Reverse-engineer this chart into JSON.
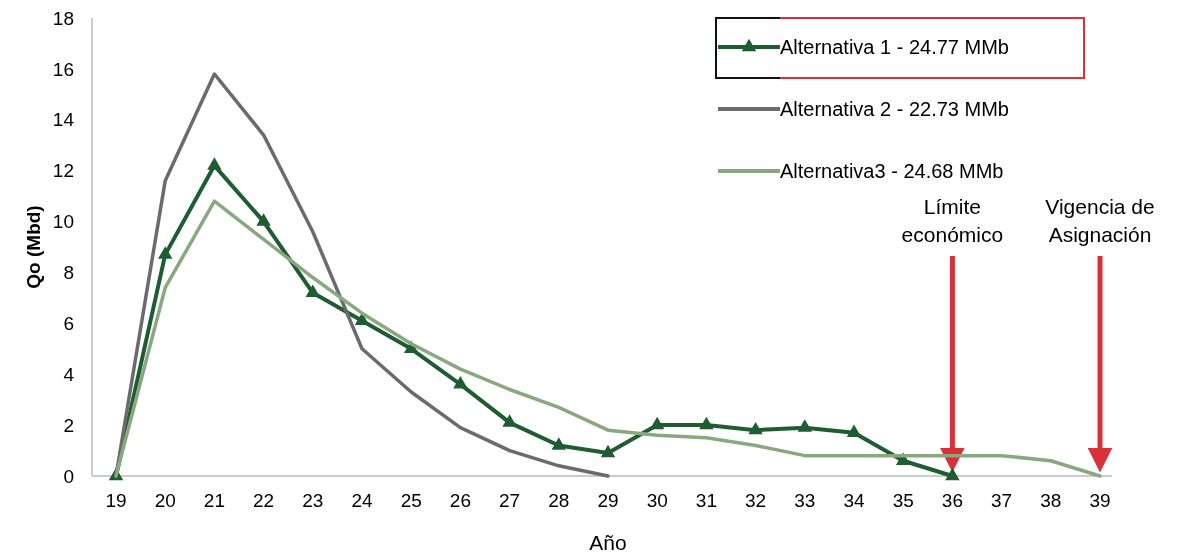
{
  "chart_data": {
    "type": "line",
    "xlabel": "Año",
    "ylabel": "Qo (Mbd)",
    "categories": [
      "19",
      "20",
      "21",
      "22",
      "23",
      "24",
      "25",
      "26",
      "27",
      "28",
      "29",
      "30",
      "31",
      "32",
      "33",
      "34",
      "35",
      "36",
      "37",
      "38",
      "39"
    ],
    "ylim": [
      0,
      18
    ],
    "yticks": [
      0,
      2,
      4,
      6,
      8,
      10,
      12,
      14,
      16,
      18
    ],
    "legend": "top right",
    "series": [
      {
        "name": "Alternativa 1 - 24.77 MMb",
        "color": "#1f5c32",
        "marker": "triangle",
        "values": [
          0,
          8.7,
          12.2,
          10,
          7.2,
          6.1,
          5.0,
          3.6,
          2.1,
          1.2,
          0.9,
          2.0,
          2.0,
          1.8,
          1.9,
          1.7,
          0.6,
          0,
          null,
          null,
          null
        ]
      },
      {
        "name": "Alternativa 2 - 22.73 MMb",
        "color": "#6b6b6e",
        "marker": "none",
        "values": [
          0,
          11.6,
          15.8,
          13.4,
          9.6,
          5.0,
          3.3,
          1.9,
          1.0,
          0.4,
          0,
          null,
          null,
          null,
          null,
          null,
          null,
          null,
          null,
          null,
          null
        ]
      },
      {
        "name": "Alternativa3 - 24.68 MMb",
        "color": "#8aa880",
        "marker": "none",
        "values": [
          0,
          7.4,
          10.8,
          9.3,
          7.8,
          6.4,
          5.2,
          4.2,
          3.4,
          2.7,
          1.8,
          1.6,
          1.5,
          1.2,
          0.8,
          0.8,
          0.8,
          0.8,
          0.8,
          0.6,
          0
        ]
      }
    ],
    "ref_lines": [
      {
        "axis": "x",
        "value": "36",
        "label": "Límite económico",
        "color": "#d9303a"
      },
      {
        "axis": "x",
        "value": "39",
        "label": "Vigencia de Asignación",
        "color": "#d9303a"
      }
    ]
  }
}
